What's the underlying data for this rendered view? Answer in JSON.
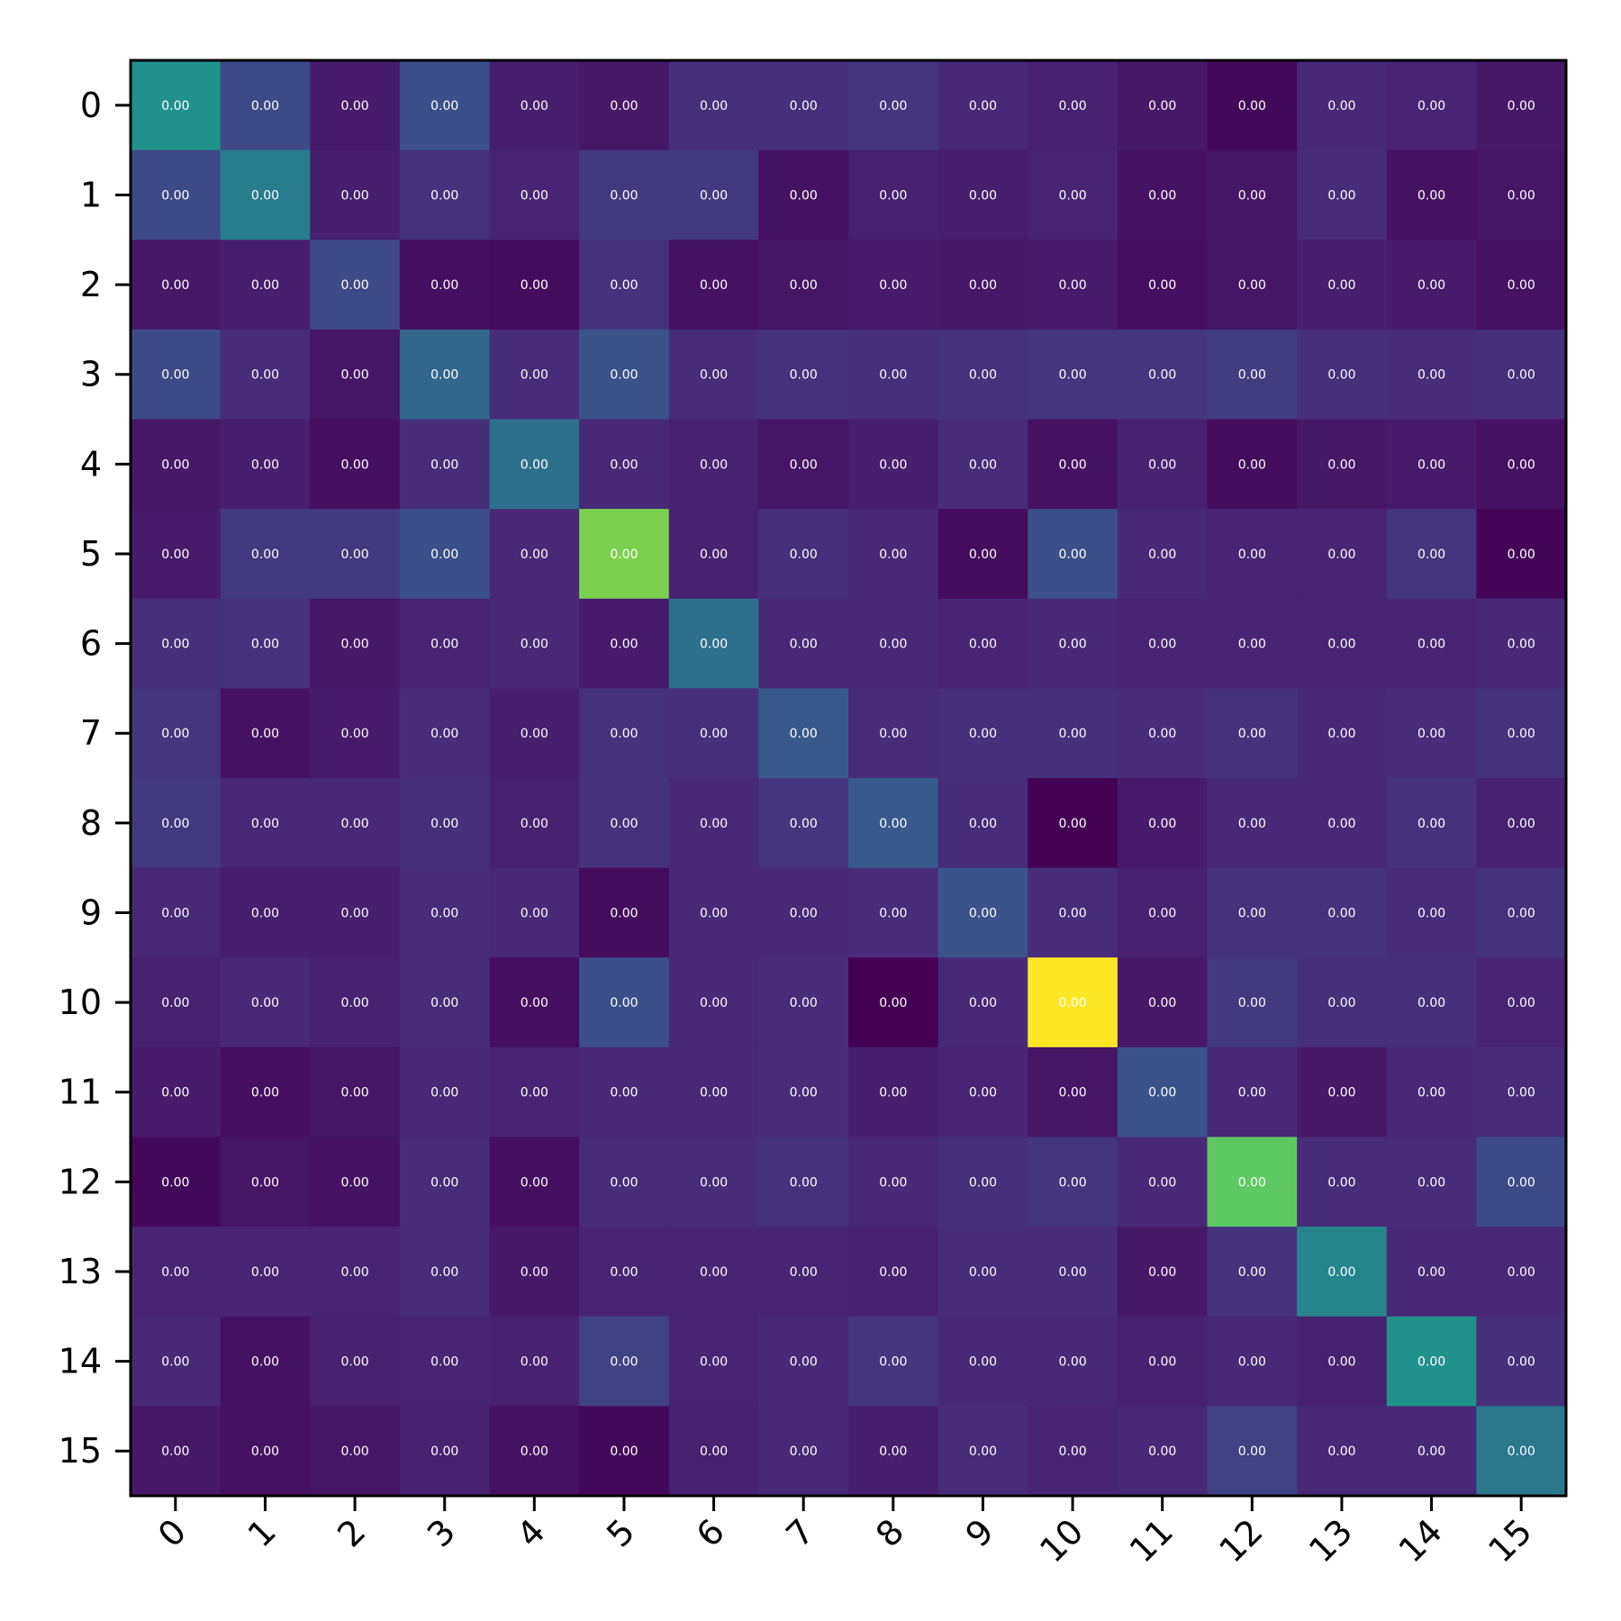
{
  "chart_data": {
    "type": "heatmap",
    "title": "",
    "xlabel": "",
    "ylabel": "",
    "colormap": "viridis",
    "x_categories": [
      "0",
      "1",
      "2",
      "3",
      "4",
      "5",
      "6",
      "7",
      "8",
      "9",
      "10",
      "11",
      "12",
      "13",
      "14",
      "15"
    ],
    "y_categories": [
      "0",
      "1",
      "2",
      "3",
      "4",
      "5",
      "6",
      "7",
      "8",
      "9",
      "10",
      "11",
      "12",
      "13",
      "14",
      "15"
    ],
    "cell_label": "0.00",
    "color_intensity": [
      [
        0.5,
        0.22,
        0.08,
        0.24,
        0.09,
        0.07,
        0.14,
        0.14,
        0.16,
        0.12,
        0.1,
        0.07,
        0.02,
        0.12,
        0.11,
        0.07
      ],
      [
        0.22,
        0.42,
        0.09,
        0.15,
        0.11,
        0.17,
        0.17,
        0.05,
        0.1,
        0.09,
        0.11,
        0.05,
        0.06,
        0.13,
        0.05,
        0.06
      ],
      [
        0.07,
        0.09,
        0.22,
        0.04,
        0.03,
        0.15,
        0.05,
        0.06,
        0.08,
        0.07,
        0.08,
        0.04,
        0.06,
        0.09,
        0.08,
        0.05
      ],
      [
        0.22,
        0.13,
        0.06,
        0.33,
        0.13,
        0.25,
        0.13,
        0.15,
        0.14,
        0.15,
        0.16,
        0.16,
        0.18,
        0.14,
        0.13,
        0.14
      ],
      [
        0.07,
        0.09,
        0.04,
        0.13,
        0.37,
        0.12,
        0.1,
        0.06,
        0.09,
        0.13,
        0.05,
        0.1,
        0.03,
        0.07,
        0.08,
        0.05
      ],
      [
        0.08,
        0.17,
        0.17,
        0.24,
        0.12,
        0.8,
        0.1,
        0.14,
        0.12,
        0.03,
        0.24,
        0.12,
        0.11,
        0.11,
        0.16,
        0.01
      ],
      [
        0.14,
        0.15,
        0.07,
        0.11,
        0.12,
        0.08,
        0.37,
        0.12,
        0.12,
        0.11,
        0.12,
        0.11,
        0.11,
        0.11,
        0.11,
        0.12
      ],
      [
        0.16,
        0.05,
        0.08,
        0.13,
        0.09,
        0.15,
        0.14,
        0.28,
        0.13,
        0.14,
        0.14,
        0.13,
        0.15,
        0.12,
        0.13,
        0.15
      ],
      [
        0.17,
        0.12,
        0.12,
        0.14,
        0.1,
        0.15,
        0.12,
        0.16,
        0.28,
        0.13,
        0.0,
        0.08,
        0.12,
        0.12,
        0.15,
        0.1
      ],
      [
        0.12,
        0.09,
        0.09,
        0.13,
        0.12,
        0.03,
        0.12,
        0.12,
        0.13,
        0.25,
        0.13,
        0.1,
        0.15,
        0.15,
        0.13,
        0.15
      ],
      [
        0.1,
        0.12,
        0.1,
        0.13,
        0.04,
        0.24,
        0.12,
        0.13,
        0.0,
        0.12,
        1.0,
        0.07,
        0.17,
        0.14,
        0.14,
        0.11
      ],
      [
        0.08,
        0.04,
        0.06,
        0.12,
        0.11,
        0.12,
        0.12,
        0.13,
        0.09,
        0.11,
        0.06,
        0.25,
        0.12,
        0.07,
        0.12,
        0.13
      ],
      [
        0.02,
        0.06,
        0.05,
        0.13,
        0.04,
        0.13,
        0.13,
        0.15,
        0.12,
        0.14,
        0.16,
        0.12,
        0.75,
        0.13,
        0.13,
        0.22
      ],
      [
        0.11,
        0.11,
        0.11,
        0.13,
        0.07,
        0.11,
        0.11,
        0.11,
        0.1,
        0.13,
        0.13,
        0.07,
        0.15,
        0.45,
        0.12,
        0.12
      ],
      [
        0.12,
        0.05,
        0.1,
        0.11,
        0.1,
        0.2,
        0.11,
        0.12,
        0.16,
        0.12,
        0.12,
        0.1,
        0.12,
        0.1,
        0.5,
        0.14
      ],
      [
        0.07,
        0.05,
        0.06,
        0.1,
        0.05,
        0.02,
        0.1,
        0.12,
        0.09,
        0.13,
        0.11,
        0.12,
        0.2,
        0.12,
        0.12,
        0.4
      ]
    ],
    "grid": false,
    "legend": "none"
  }
}
